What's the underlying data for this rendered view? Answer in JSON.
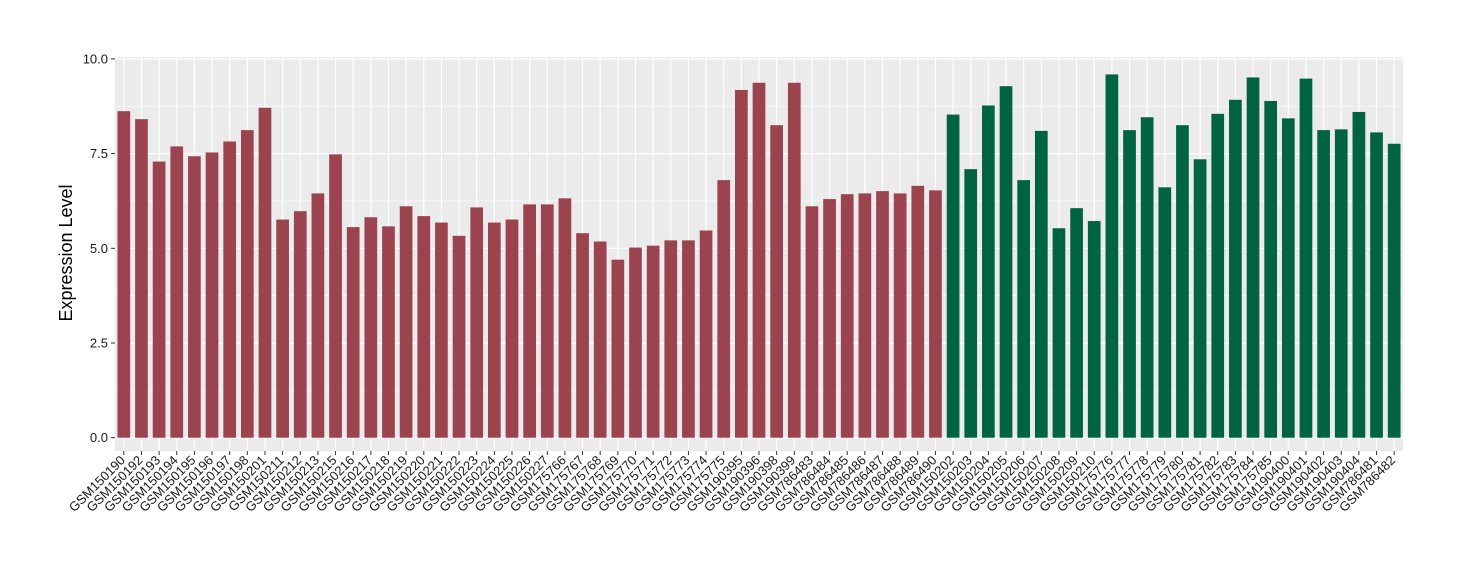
{
  "chart_data": {
    "type": "bar",
    "ylabel": "Expression Level",
    "xlabel": "",
    "title": "",
    "ylim": [
      -0.35,
      10.05
    ],
    "yticks": [
      0.0,
      2.5,
      5.0,
      7.5,
      10.0
    ],
    "ytick_labels": [
      "0.0",
      "2.5",
      "5.0",
      "7.5",
      "10.0"
    ],
    "grid": true,
    "legend": "none",
    "colors": {
      "group_a": "#9b4450",
      "group_b": "#006442",
      "panel_bg": "#ebebeb",
      "grid": "#ffffff"
    },
    "categories": [
      "GSM150190",
      "GSM150192",
      "GSM150193",
      "GSM150194",
      "GSM150195",
      "GSM150196",
      "GSM150197",
      "GSM150198",
      "GSM150201",
      "GSM150211",
      "GSM150212",
      "GSM150213",
      "GSM150215",
      "GSM150216",
      "GSM150217",
      "GSM150218",
      "GSM150219",
      "GSM150220",
      "GSM150221",
      "GSM150222",
      "GSM150223",
      "GSM150224",
      "GSM150225",
      "GSM150226",
      "GSM150227",
      "GSM175766",
      "GSM175767",
      "GSM175768",
      "GSM175769",
      "GSM175770",
      "GSM175771",
      "GSM175772",
      "GSM175773",
      "GSM175774",
      "GSM175775",
      "GSM190395",
      "GSM190396",
      "GSM190398",
      "GSM190399",
      "GSM786483",
      "GSM786484",
      "GSM786485",
      "GSM786486",
      "GSM786487",
      "GSM786488",
      "GSM786489",
      "GSM786490",
      "GSM150202",
      "GSM150203",
      "GSM150204",
      "GSM150205",
      "GSM150206",
      "GSM150207",
      "GSM150208",
      "GSM150209",
      "GSM150210",
      "GSM175776",
      "GSM175777",
      "GSM175778",
      "GSM175779",
      "GSM175780",
      "GSM175781",
      "GSM175782",
      "GSM175783",
      "GSM175784",
      "GSM175785",
      "GSM190400",
      "GSM190401",
      "GSM190402",
      "GSM190403",
      "GSM190404",
      "GSM786481",
      "GSM786482"
    ],
    "values": [
      8.62,
      8.41,
      7.29,
      7.69,
      7.43,
      7.53,
      7.82,
      8.12,
      8.71,
      5.76,
      5.98,
      6.45,
      7.48,
      5.56,
      5.82,
      5.58,
      6.11,
      5.85,
      5.68,
      5.33,
      6.08,
      5.68,
      5.76,
      6.16,
      6.16,
      6.32,
      5.4,
      5.18,
      4.7,
      5.02,
      5.07,
      5.21,
      5.21,
      5.47,
      6.8,
      9.18,
      9.37,
      8.25,
      9.37,
      6.11,
      6.3,
      6.43,
      6.45,
      6.51,
      6.45,
      6.65,
      6.53,
      8.53,
      7.09,
      8.77,
      9.28,
      6.8,
      8.1,
      5.53,
      6.06,
      5.72,
      9.59,
      8.12,
      8.46,
      6.61,
      8.25,
      7.35,
      8.55,
      8.92,
      9.51,
      8.89,
      8.43,
      9.48,
      8.12,
      8.14,
      8.6,
      8.06,
      7.76
    ],
    "groups": [
      "a",
      "a",
      "a",
      "a",
      "a",
      "a",
      "a",
      "a",
      "a",
      "a",
      "a",
      "a",
      "a",
      "a",
      "a",
      "a",
      "a",
      "a",
      "a",
      "a",
      "a",
      "a",
      "a",
      "a",
      "a",
      "a",
      "a",
      "a",
      "a",
      "a",
      "a",
      "a",
      "a",
      "a",
      "a",
      "a",
      "a",
      "a",
      "a",
      "a",
      "a",
      "a",
      "a",
      "a",
      "a",
      "a",
      "a",
      "b",
      "b",
      "b",
      "b",
      "b",
      "b",
      "b",
      "b",
      "b",
      "b",
      "b",
      "b",
      "b",
      "b",
      "b",
      "b",
      "b",
      "b",
      "b",
      "b",
      "b",
      "b",
      "b",
      "b",
      "b",
      "b"
    ]
  }
}
